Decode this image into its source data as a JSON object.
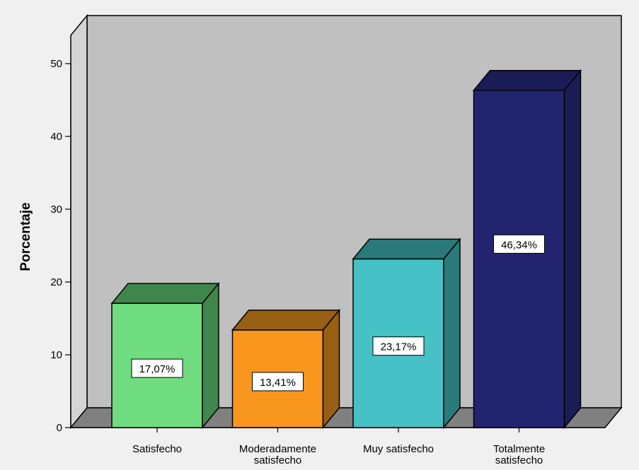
{
  "chart_data": {
    "type": "bar",
    "title": "",
    "xlabel": "",
    "ylabel": "Porcentaje",
    "ylim": [
      0,
      50
    ],
    "yticks": [
      0,
      10,
      20,
      30,
      40,
      50
    ],
    "categories": [
      [
        "Satisfecho"
      ],
      [
        "Moderadamente",
        "satisfecho"
      ],
      [
        "Muy satisfecho"
      ],
      [
        "Totalmente",
        "satisfecho"
      ]
    ],
    "values": [
      17.07,
      13.41,
      23.17,
      46.34
    ],
    "data_labels": [
      "17,07%",
      "13,41%",
      "23,17%",
      "46,34%"
    ],
    "colors": {
      "background": "#f0f0f0",
      "plot_back_wall": "#c0c0c0",
      "plot_left_wall": "#d4d4d4",
      "plot_floor": "#808080",
      "bar_fronts": [
        "#70dc80",
        "#f8961e",
        "#46c1c6",
        "#23246f"
      ],
      "bar_tops": [
        "#3f874c",
        "#975f12",
        "#2a7a7c",
        "#1b1c55"
      ],
      "bar_sides": [
        "#3f874c",
        "#975f12",
        "#2a7a7c",
        "#1b1c55"
      ]
    },
    "grid": false,
    "legend": "none",
    "style": "3d"
  }
}
